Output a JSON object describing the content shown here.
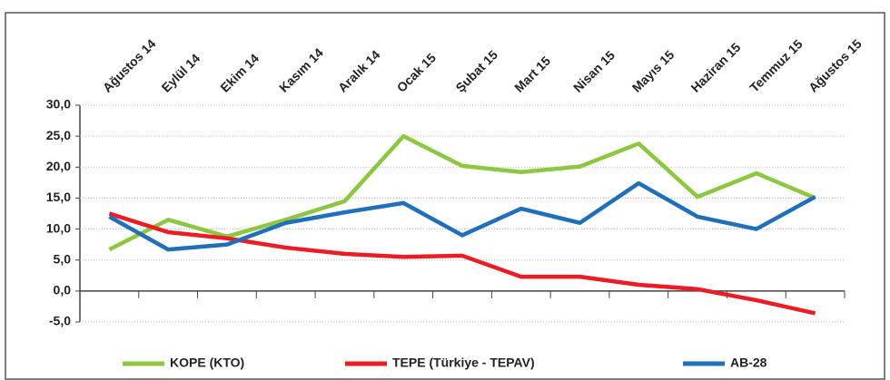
{
  "chart_data": {
    "type": "line",
    "categories": [
      "Ağustos 14",
      "Eylül 14",
      "Ekim 14",
      "Kasım 14",
      "Aralık 14",
      "Ocak 15",
      "Şubat 15",
      "Mart 15",
      "Nisan 15",
      "Mayıs 15",
      "Haziran 15",
      "Temmuz 15",
      "Ağustos 15"
    ],
    "series": [
      {
        "name": "KOPE (KTO)",
        "color": "#8dc63f",
        "values": [
          6.7,
          11.5,
          8.8,
          11.5,
          14.5,
          25.0,
          20.2,
          19.2,
          20.1,
          23.8,
          15.2,
          19.0,
          15.0
        ]
      },
      {
        "name": "TEPE (Türkiye - TEPAV)",
        "color": "#ed1c24",
        "values": [
          12.5,
          9.5,
          8.5,
          7.0,
          6.0,
          5.5,
          5.7,
          2.3,
          2.3,
          1.0,
          0.3,
          -1.5,
          -3.6
        ]
      },
      {
        "name": "AB-28",
        "color": "#1f6fbd",
        "values": [
          12.0,
          6.7,
          7.5,
          11.0,
          12.7,
          14.2,
          9.0,
          13.3,
          11.0,
          17.4,
          12.0,
          10.0,
          15.2
        ]
      }
    ],
    "ylim": [
      -5,
      30
    ],
    "yticks": [
      {
        "value": -5,
        "label": "-5,0"
      },
      {
        "value": 0,
        "label": "0,0"
      },
      {
        "value": 5,
        "label": "5,0"
      },
      {
        "value": 10,
        "label": "10,0"
      },
      {
        "value": 15,
        "label": "15,0"
      },
      {
        "value": 20,
        "label": "20,0"
      },
      {
        "value": 25,
        "label": "25,0"
      },
      {
        "value": 30,
        "label": "30,0"
      }
    ],
    "grid": true,
    "legend": "bottom"
  }
}
